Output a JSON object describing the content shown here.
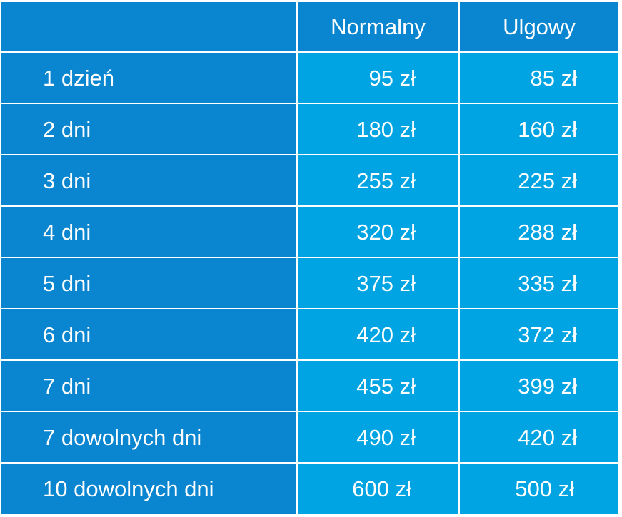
{
  "table": {
    "headers": {
      "label": "",
      "normal": "Normalny",
      "reduced": "Ulgowy"
    },
    "rows": [
      {
        "label": "1 dzień",
        "normal": "95 zł",
        "reduced": "85 zł"
      },
      {
        "label": "2 dni",
        "normal": "180 zł",
        "reduced": "160 zł"
      },
      {
        "label": "3 dni",
        "normal": "255 zł",
        "reduced": "225 zł"
      },
      {
        "label": "4 dni",
        "normal": "320 zł",
        "reduced": "288 zł"
      },
      {
        "label": "5 dni",
        "normal": "375 zł",
        "reduced": "335 zł"
      },
      {
        "label": "6 dni",
        "normal": "420 zł",
        "reduced": "372 zł"
      },
      {
        "label": "7 dni",
        "normal": "455 zł",
        "reduced": "399 zł"
      },
      {
        "label": "7 dowolnych dni",
        "normal": "490 zł",
        "reduced": "420 zł"
      },
      {
        "label": "10 dowolnych dni",
        "normal": "600 zł",
        "reduced": "500 zł"
      }
    ]
  },
  "colors": {
    "header_background": "#0a85cf",
    "label_background": "#0a85cf",
    "value_background": "#00a4e2",
    "text": "#ffffff",
    "grid_lines": "#ffffff"
  }
}
